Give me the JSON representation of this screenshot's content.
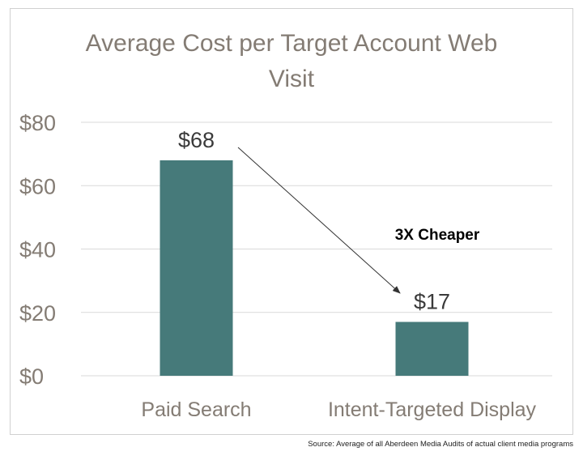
{
  "chart_data": {
    "type": "bar",
    "title_line1": "Average Cost per Target Account Web",
    "title_line2": "Visit",
    "categories": [
      "Paid Search",
      "Intent-Targeted Display"
    ],
    "values": [
      68,
      17
    ],
    "data_labels": [
      "$68",
      "$17"
    ],
    "ylim": [
      0,
      80
    ],
    "yticks": [
      0,
      20,
      40,
      60,
      80
    ],
    "ytick_labels": [
      "$0",
      "$20",
      "$40",
      "$60",
      "$80"
    ],
    "grid": true,
    "bar_color": "#467a7a",
    "annotation": "3X Cheaper"
  },
  "source": "Source: Average of all Aberdeen Media Audits of actual client media programs"
}
